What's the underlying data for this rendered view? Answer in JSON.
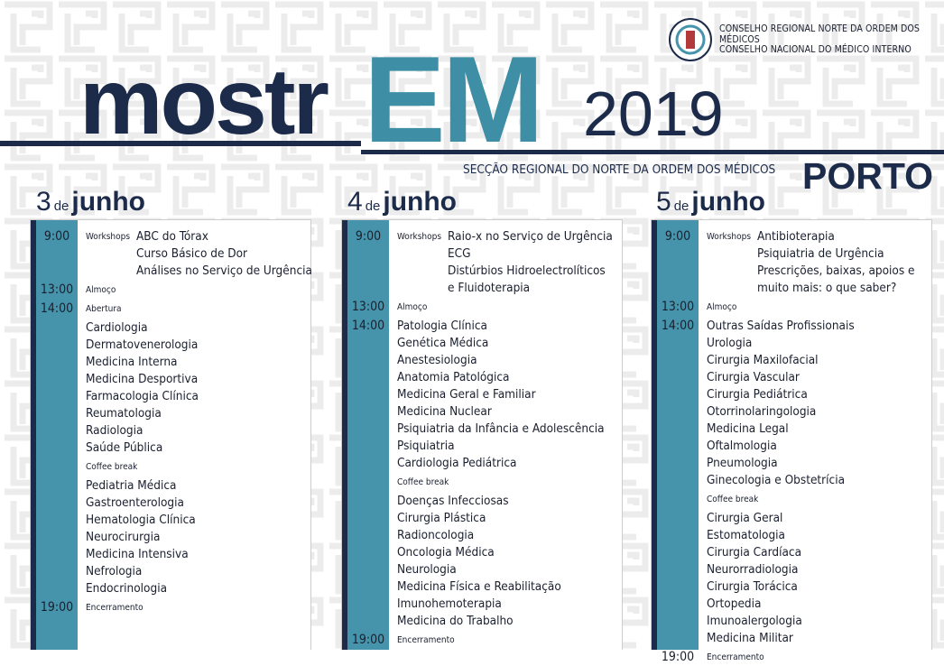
{
  "header": {
    "organizations": [
      "CONSELHO REGIONAL NORTE DA ORDEM DOS MÉDICOS",
      "CONSELHO NACIONAL DO MÉDICO INTERNO"
    ],
    "title": {
      "prefix": "mostr",
      "highlight": "EM",
      "year": "2019"
    },
    "subtitle": "SECÇÃO REGIONAL DO NORTE DA ORDEM DOS MÉDICOS",
    "city": "PORTO"
  },
  "days": [
    {
      "number": "3",
      "de": "de",
      "month": "junho",
      "entries": [
        {
          "time": "9:00",
          "label": "Workshops",
          "items": [
            "ABC do Tórax",
            "Curso Básico de Dor",
            "Análises no Serviço de Urgência"
          ]
        },
        {
          "time": "13:00",
          "label": "Almoço"
        },
        {
          "time": "14:00",
          "label": "Abertura",
          "items": [
            "Cardiologia",
            "Dermatovenerologia",
            "Medicina Interna",
            "Medicina Desportiva",
            "Farmacologia Clínica",
            "Reumatologia",
            "Radiologia",
            "Saúde Pública"
          ]
        },
        {
          "label": "Coffee break",
          "items": [
            "Pediatria Médica",
            "Gastroenterologia",
            "Hematologia Clínica",
            "Neurocirurgia",
            "Medicina Intensiva",
            "Nefrologia",
            "Endocrinologia"
          ]
        },
        {
          "time": "19:00",
          "label": "Encerramento"
        }
      ]
    },
    {
      "number": "4",
      "de": "de",
      "month": "junho",
      "entries": [
        {
          "time": "9:00",
          "label": "Workshops",
          "items": [
            "Raio-x no Serviço de Urgência",
            "ECG",
            "Distúrbios Hidroelectrolíticos",
            "e Fluidoterapia"
          ]
        },
        {
          "time": "13:00",
          "label": "Almoço"
        },
        {
          "time": "14:00",
          "items": [
            "Patologia Clínica",
            "Genética Médica",
            "Anestesiologia",
            "Anatomia Patológica",
            "Medicina Geral e Familiar",
            "Medicina Nuclear",
            "Psiquiatria da Infância e Adolescência",
            "Psiquiatria",
            "Cardiologia Pediátrica"
          ]
        },
        {
          "label": "Coffee break",
          "items": [
            "Doenças Infecciosas",
            "Cirurgia Plástica",
            "Radioncologia",
            "Oncologia Médica",
            "Neurologia",
            "Medicina Física e Reabilitação",
            "Imunohemoterapia",
            "Medicina do Trabalho"
          ]
        },
        {
          "time": "19:00",
          "label": "Encerramento"
        }
      ]
    },
    {
      "number": "5",
      "de": "de",
      "month": "junho",
      "entries": [
        {
          "time": "9:00",
          "label": "Workshops",
          "items": [
            "Antibioterapia",
            "Psiquiatria de Urgência",
            "Prescrições, baixas, apoios e",
            "muito mais: o que saber?"
          ]
        },
        {
          "time": "13:00",
          "label": "Almoço"
        },
        {
          "time": "14:00",
          "items": [
            "Outras Saídas Profissionais",
            "Urologia",
            "Cirurgia Maxilofacial",
            "Cirurgia Vascular",
            "Cirurgia Pediátrica",
            "Otorrinolaringologia",
            "Medicina Legal",
            "Oftalmologia",
            "Pneumologia",
            "Ginecologia e Obstetrícia"
          ]
        },
        {
          "label": "Coffee break",
          "items": [
            "Cirurgia Geral",
            "Estomatologia",
            "Cirurgia Cardíaca",
            "Neurorradiologia",
            "Cirurgia Torácica",
            "Ortopedia",
            "Imunoalergologia",
            "Medicina Militar"
          ]
        },
        {
          "time": "19:00",
          "label": "Encerramento"
        }
      ]
    }
  ]
}
